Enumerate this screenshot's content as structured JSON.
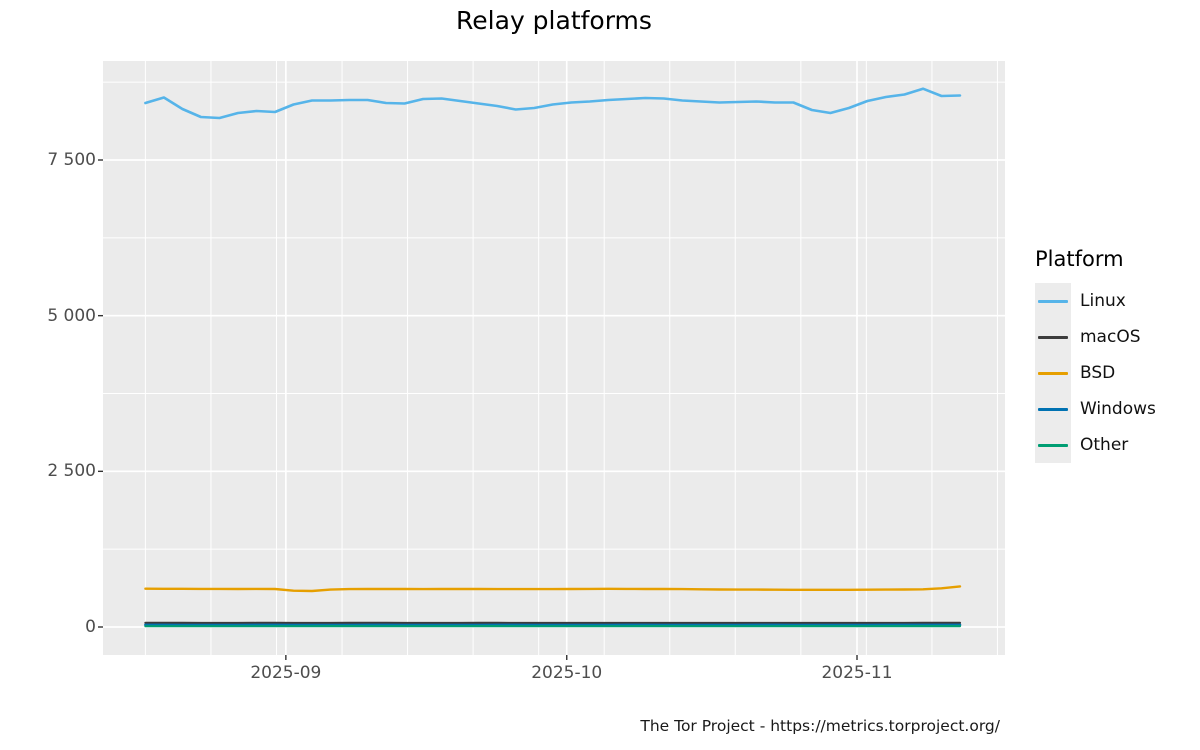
{
  "title": "Relay platforms",
  "footer": "The Tor Project - https://metrics.torproject.org/",
  "legend": {
    "title": "Platform",
    "items": [
      {
        "label": "Linux",
        "color": "#56B4E9"
      },
      {
        "label": "macOS",
        "color": "#3C3C3C"
      },
      {
        "label": "BSD",
        "color": "#E69F00"
      },
      {
        "label": "Windows",
        "color": "#0072B2"
      },
      {
        "label": "Other",
        "color": "#009E73"
      }
    ]
  },
  "chart_data": {
    "type": "line",
    "title": "Relay platforms",
    "xlabel": "",
    "ylabel": "",
    "x_range": [
      "2025-08-17",
      "2025-11-12"
    ],
    "x_total_days": 87,
    "ylim": [
      -440,
      9090
    ],
    "grid": "on",
    "legend_position": "right",
    "colors": {
      "panel": "#EBEBEB",
      "grid": "#FFFFFF",
      "axis_text": "#4D4D4D",
      "tick": "#333333"
    },
    "y_ticks": [
      0,
      2500,
      5000,
      7500
    ],
    "y_tick_labels": [
      "0",
      "2 500",
      "5 000",
      "7 500"
    ],
    "y_minor_gridlines": [
      1250,
      3750,
      6250,
      8750
    ],
    "x_ticks": [
      {
        "label": "2025-09",
        "day": 15
      },
      {
        "label": "2025-10",
        "day": 45
      },
      {
        "label": "2025-11",
        "day": 76
      }
    ],
    "x_minor_gridline_days": [
      0,
      7,
      14,
      21,
      28,
      35,
      42,
      49,
      56,
      63,
      70,
      77,
      84,
      91
    ],
    "sample_interval_days": 2,
    "series": [
      {
        "name": "Linux",
        "color": "#56B4E9",
        "width": 2.6,
        "values": [
          8416,
          8504,
          8319,
          8190,
          8174,
          8255,
          8287,
          8271,
          8392,
          8456,
          8456,
          8464,
          8464,
          8416,
          8408,
          8480,
          8488,
          8448,
          8408,
          8368,
          8311,
          8335,
          8392,
          8424,
          8440,
          8464,
          8480,
          8496,
          8488,
          8456,
          8440,
          8424,
          8432,
          8440,
          8424,
          8424,
          8303,
          8255,
          8335,
          8448,
          8512,
          8552,
          8645,
          8528,
          8536
        ]
      },
      {
        "name": "macOS",
        "color": "#3C3C3C",
        "width": 2.2,
        "values": [
          66,
          66,
          66,
          65,
          65,
          65,
          66,
          66,
          65,
          65,
          65,
          66,
          66,
          66,
          65,
          65,
          65,
          65,
          66,
          66,
          65,
          65,
          65,
          64,
          64,
          65,
          65,
          65,
          65,
          64,
          64,
          64,
          65,
          65,
          65,
          64,
          64,
          64,
          64,
          65,
          65,
          65,
          66,
          66,
          66
        ]
      },
      {
        "name": "BSD",
        "color": "#E69F00",
        "width": 2.4,
        "values": [
          615,
          614,
          613,
          612,
          612,
          611,
          612,
          610,
          583,
          578,
          600,
          608,
          610,
          611,
          610,
          609,
          610,
          611,
          610,
          609,
          608,
          608,
          609,
          610,
          612,
          613,
          612,
          611,
          610,
          608,
          605,
          603,
          601,
          600,
          599,
          598,
          597,
          597,
          598,
          599,
          600,
          602,
          605,
          622,
          652
        ]
      },
      {
        "name": "Windows",
        "color": "#0072B2",
        "width": 2.6,
        "values": [
          33,
          33,
          32,
          32,
          32,
          32,
          33,
          33,
          32,
          32,
          32,
          32,
          33,
          33,
          32,
          32,
          32,
          32,
          32,
          33,
          33,
          32,
          32,
          32,
          32,
          32,
          33,
          33,
          32,
          32,
          32,
          32,
          32,
          33,
          33,
          32,
          32,
          32,
          32,
          32,
          33,
          33,
          34,
          34,
          34
        ]
      },
      {
        "name": "Other",
        "color": "#009E73",
        "width": 2.2,
        "values": [
          13,
          13,
          13,
          13,
          13,
          13,
          13,
          13,
          13,
          13,
          14,
          14,
          13,
          13,
          13,
          13,
          13,
          13,
          14,
          14,
          13,
          13,
          13,
          13,
          13,
          13,
          13,
          14,
          14,
          13,
          13,
          13,
          13,
          13,
          13,
          14,
          14,
          13,
          13,
          13,
          14,
          14,
          14,
          14,
          14
        ]
      }
    ]
  }
}
